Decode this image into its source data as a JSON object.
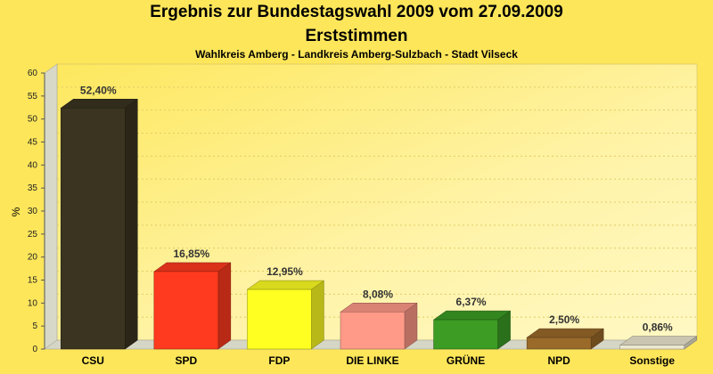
{
  "chart_data": {
    "type": "bar",
    "title": "Ergebnis zur Bundestagswahl 2009 vom 27.09.2009",
    "subtitle": "Erststimmen",
    "subtitle2": "Wahlkreis Amberg - Landkreis Amberg-Sulzbach - Stadt Vilseck",
    "ylabel": "%",
    "ylim": [
      0,
      60
    ],
    "yticks": [
      0,
      5,
      10,
      15,
      20,
      25,
      30,
      35,
      40,
      45,
      50,
      55,
      60
    ],
    "grid": true,
    "categories": [
      "CSU",
      "SPD",
      "FDP",
      "DIE LINKE",
      "GRÜNE",
      "NPD",
      "Sonstige"
    ],
    "values": [
      52.4,
      16.85,
      12.95,
      8.08,
      6.37,
      2.5,
      0.86
    ],
    "value_labels": [
      "52,40%",
      "16,85%",
      "12,95%",
      "8,08%",
      "6,37%",
      "2,50%",
      "0,86%"
    ],
    "colors": [
      "#3a3420",
      "#ff3a1e",
      "#ffff22",
      "#ff9a88",
      "#3c9c24",
      "#9a6a2a",
      "#ece8d0"
    ],
    "background": "#fde65a"
  }
}
